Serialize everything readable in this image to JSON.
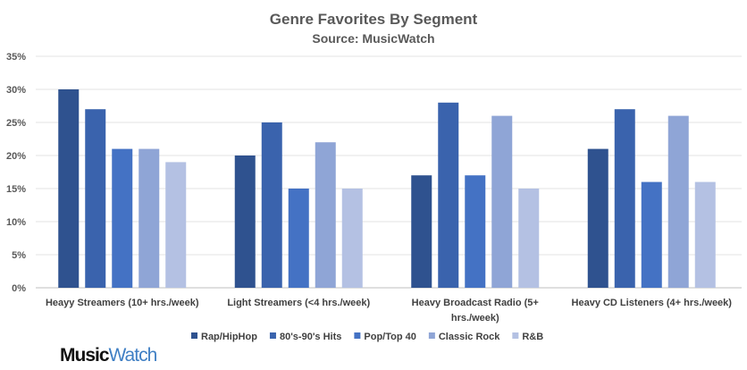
{
  "chart_data": {
    "type": "bar",
    "title": "Genre Favorites By Segment",
    "subtitle": "Source: MusicWatch",
    "categories": [
      "Heayy Streamers (10+ hrs./week)",
      "Light Streamers (<4 hrs./week)",
      "Heavy Broadcast Radio (5+ hrs./week)",
      "Heavy CD Listeners (4+ hrs./week)"
    ],
    "category_lines": [
      [
        "Heayy Streamers (10+ hrs./week)"
      ],
      [
        "Light Streamers (<4 hrs./week)"
      ],
      [
        "Heavy Broadcast Radio (5+",
        "hrs./week)"
      ],
      [
        "Heavy CD Listeners (4+ hrs./week)"
      ]
    ],
    "series": [
      {
        "name": "Rap/HipHop",
        "values": [
          30,
          20,
          17,
          21
        ],
        "color": "#2f528f"
      },
      {
        "name": "80's-90's Hits",
        "values": [
          27,
          25,
          28,
          27
        ],
        "color": "#3a63ad"
      },
      {
        "name": "Pop/Top 40",
        "values": [
          21,
          15,
          17,
          16
        ],
        "color": "#4472c4"
      },
      {
        "name": "Classic Rock",
        "values": [
          21,
          22,
          26,
          26
        ],
        "color": "#8fa5d6"
      },
      {
        "name": "R&B",
        "values": [
          19,
          15,
          15,
          16
        ],
        "color": "#b4c1e3"
      }
    ],
    "yticks": [
      "0%",
      "5%",
      "10%",
      "15%",
      "20%",
      "25%",
      "30%",
      "35%"
    ],
    "ylim": [
      0,
      35
    ],
    "grid": true,
    "legend": "bottom"
  },
  "logo": {
    "part1": "Music",
    "part2": "Watch"
  }
}
